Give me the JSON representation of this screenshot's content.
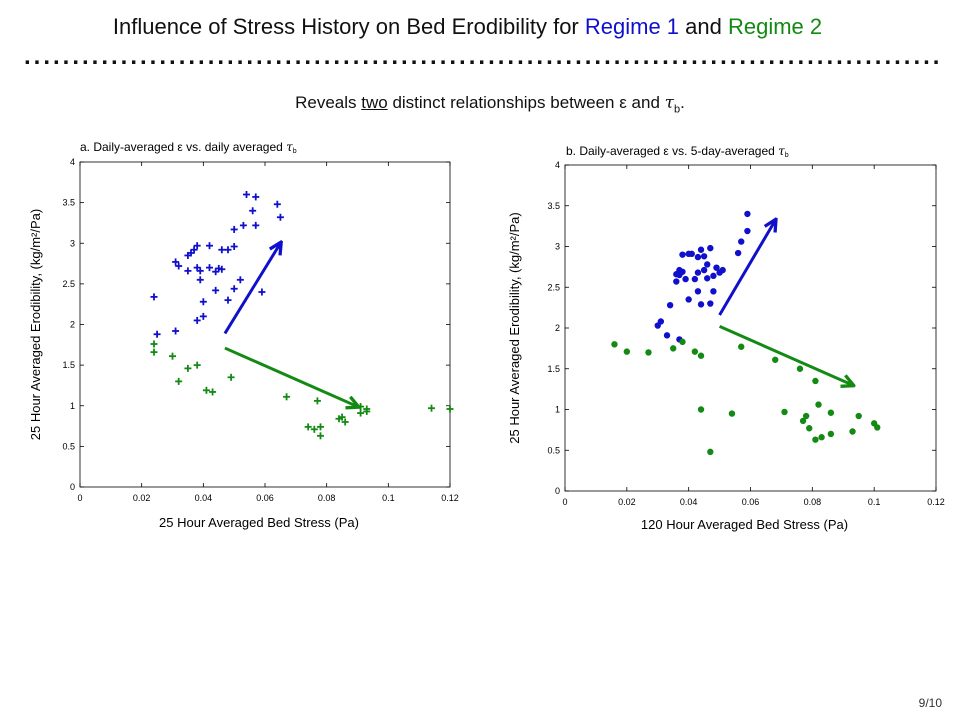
{
  "slide": {
    "title_prefix": "Influence of Stress History on Bed Erodibility for ",
    "regime1_label": "Regime 1",
    "title_and": " and ",
    "regime2_label": "Regime 2",
    "subtitle_prefix": "Reveals ",
    "subtitle_emph": "two",
    "subtitle_mid": " distinct relationships between ε and ",
    "subtitle_tau": "τ",
    "subtitle_tau_sub": "b",
    "subtitle_end": ".",
    "page_number": "9/10"
  },
  "colors": {
    "regime1": "#1010cc",
    "regime2": "#138a13",
    "axis": "#000000"
  },
  "chart_data": [
    {
      "type": "scatter",
      "panel_title": "a. Daily-averaged ε vs. daily averaged ",
      "panel_title_tau": "τ",
      "panel_title_tau_sub": "b",
      "xlabel": "25 Hour Averaged Bed Stress (Pa)",
      "ylabel": "25 Hour Averaged Erodibility, (kg/m²/Pa)",
      "xlim": [
        0,
        0.12
      ],
      "ylim": [
        0,
        4
      ],
      "xticks": [
        "0",
        "0.02",
        "0.04",
        "0.06",
        "0.08",
        "0.1",
        "0.12"
      ],
      "yticks": [
        "0",
        "0.5",
        "1",
        "1.5",
        "2",
        "2.5",
        "3",
        "3.5",
        "4"
      ],
      "marker": "plus",
      "grid": false,
      "series": [
        {
          "color": "#1010cc",
          "points": [
            [
              0.024,
              2.34
            ],
            [
              0.025,
              1.88
            ],
            [
              0.031,
              1.92
            ],
            [
              0.031,
              2.77
            ],
            [
              0.032,
              2.72
            ],
            [
              0.035,
              2.66
            ],
            [
              0.035,
              2.85
            ],
            [
              0.036,
              2.88
            ],
            [
              0.037,
              2.92
            ],
            [
              0.038,
              2.97
            ],
            [
              0.038,
              2.7
            ],
            [
              0.038,
              2.05
            ],
            [
              0.039,
              2.66
            ],
            [
              0.039,
              2.55
            ],
            [
              0.04,
              2.1
            ],
            [
              0.04,
              2.28
            ],
            [
              0.042,
              2.7
            ],
            [
              0.042,
              2.97
            ],
            [
              0.044,
              2.42
            ],
            [
              0.044,
              2.65
            ],
            [
              0.045,
              2.69
            ],
            [
              0.046,
              2.68
            ],
            [
              0.046,
              2.92
            ],
            [
              0.048,
              2.3
            ],
            [
              0.048,
              2.92
            ],
            [
              0.05,
              2.44
            ],
            [
              0.05,
              2.96
            ],
            [
              0.05,
              3.17
            ],
            [
              0.052,
              2.55
            ],
            [
              0.053,
              3.22
            ],
            [
              0.054,
              3.6
            ],
            [
              0.056,
              3.4
            ],
            [
              0.057,
              3.22
            ],
            [
              0.057,
              3.57
            ],
            [
              0.059,
              2.4
            ],
            [
              0.064,
              3.48
            ],
            [
              0.065,
              3.32
            ]
          ]
        },
        {
          "color": "#138a13",
          "points": [
            [
              0.024,
              1.66
            ],
            [
              0.024,
              1.76
            ],
            [
              0.03,
              1.61
            ],
            [
              0.032,
              1.3
            ],
            [
              0.035,
              1.46
            ],
            [
              0.038,
              1.5
            ],
            [
              0.041,
              1.19
            ],
            [
              0.043,
              1.17
            ],
            [
              0.049,
              1.35
            ],
            [
              0.067,
              1.11
            ],
            [
              0.074,
              0.74
            ],
            [
              0.076,
              0.71
            ],
            [
              0.077,
              1.06
            ],
            [
              0.078,
              0.74
            ],
            [
              0.078,
              0.63
            ],
            [
              0.084,
              0.84
            ],
            [
              0.085,
              0.86
            ],
            [
              0.086,
              0.8
            ],
            [
              0.091,
              0.99
            ],
            [
              0.091,
              0.91
            ],
            [
              0.093,
              0.96
            ],
            [
              0.093,
              0.93
            ],
            [
              0.114,
              0.97
            ],
            [
              0.12,
              0.96
            ]
          ]
        }
      ],
      "arrows": [
        {
          "color": "#1010cc",
          "from": [
            0.047,
            1.89
          ],
          "to": [
            0.065,
            3.0
          ]
        },
        {
          "color": "#138a13",
          "from": [
            0.047,
            1.71
          ],
          "to": [
            0.09,
            0.99
          ]
        }
      ]
    },
    {
      "type": "scatter",
      "panel_title": "b. Daily-averaged ε vs. 5-day-averaged ",
      "panel_title_tau": "τ",
      "panel_title_tau_sub": "b",
      "xlabel": "120 Hour Averaged Bed Stress (Pa)",
      "ylabel": "25 Hour Averaged Erodibility, (kg/m²/Pa)",
      "xlim": [
        0,
        0.12
      ],
      "ylim": [
        0,
        4
      ],
      "xticks": [
        "0",
        "0.02",
        "0.04",
        "0.06",
        "0.08",
        "0.1",
        "0.12"
      ],
      "yticks": [
        "0",
        "0.5",
        "1",
        "1.5",
        "2",
        "2.5",
        "3",
        "3.5",
        "4"
      ],
      "marker": "dot",
      "grid": false,
      "series": [
        {
          "color": "#1010cc",
          "points": [
            [
              0.03,
              2.03
            ],
            [
              0.031,
              2.08
            ],
            [
              0.033,
              1.91
            ],
            [
              0.034,
              2.28
            ],
            [
              0.036,
              2.57
            ],
            [
              0.036,
              2.66
            ],
            [
              0.037,
              2.71
            ],
            [
              0.037,
              2.65
            ],
            [
              0.037,
              1.86
            ],
            [
              0.038,
              2.69
            ],
            [
              0.038,
              2.9
            ],
            [
              0.039,
              2.6
            ],
            [
              0.04,
              2.91
            ],
            [
              0.04,
              2.35
            ],
            [
              0.041,
              2.91
            ],
            [
              0.042,
              2.6
            ],
            [
              0.043,
              2.87
            ],
            [
              0.043,
              2.68
            ],
            [
              0.043,
              2.45
            ],
            [
              0.044,
              2.29
            ],
            [
              0.044,
              2.96
            ],
            [
              0.045,
              2.71
            ],
            [
              0.045,
              2.88
            ],
            [
              0.046,
              2.61
            ],
            [
              0.046,
              2.78
            ],
            [
              0.047,
              2.3
            ],
            [
              0.047,
              2.98
            ],
            [
              0.048,
              2.45
            ],
            [
              0.048,
              2.64
            ],
            [
              0.049,
              2.74
            ],
            [
              0.05,
              2.68
            ],
            [
              0.051,
              2.71
            ],
            [
              0.056,
              2.92
            ],
            [
              0.057,
              3.06
            ],
            [
              0.059,
              3.19
            ],
            [
              0.059,
              3.4
            ]
          ]
        },
        {
          "color": "#138a13",
          "points": [
            [
              0.016,
              1.8
            ],
            [
              0.02,
              1.71
            ],
            [
              0.027,
              1.7
            ],
            [
              0.035,
              1.75
            ],
            [
              0.038,
              1.83
            ],
            [
              0.042,
              1.71
            ],
            [
              0.044,
              1.66
            ],
            [
              0.044,
              1.0
            ],
            [
              0.047,
              0.48
            ],
            [
              0.054,
              0.95
            ],
            [
              0.057,
              1.77
            ],
            [
              0.068,
              1.61
            ],
            [
              0.071,
              0.97
            ],
            [
              0.076,
              1.5
            ],
            [
              0.077,
              0.86
            ],
            [
              0.078,
              0.92
            ],
            [
              0.079,
              0.77
            ],
            [
              0.081,
              1.35
            ],
            [
              0.081,
              0.63
            ],
            [
              0.082,
              1.06
            ],
            [
              0.083,
              0.66
            ],
            [
              0.086,
              0.96
            ],
            [
              0.086,
              0.7
            ],
            [
              0.093,
              0.73
            ],
            [
              0.095,
              0.92
            ],
            [
              0.1,
              0.83
            ],
            [
              0.101,
              0.78
            ]
          ]
        }
      ],
      "arrows": [
        {
          "color": "#1010cc",
          "from": [
            0.05,
            2.16
          ],
          "to": [
            0.068,
            3.32
          ]
        },
        {
          "color": "#138a13",
          "from": [
            0.05,
            2.02
          ],
          "to": [
            0.093,
            1.3
          ]
        }
      ]
    }
  ]
}
